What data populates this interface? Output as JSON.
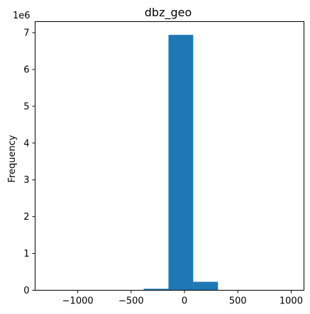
{
  "chart_data": {
    "type": "bar",
    "title": "dbz_geo",
    "xlabel": "",
    "ylabel": "Frequency",
    "y_scale_label": "1e6",
    "xlim": [
      -1400,
      1120
    ],
    "ylim": [
      0,
      7300000
    ],
    "x_ticks": [
      -1000,
      -500,
      0,
      500,
      1000
    ],
    "x_tick_labels": [
      "−1000",
      "−500",
      "0",
      "500",
      "1000"
    ],
    "y_ticks": [
      0,
      1000000,
      2000000,
      3000000,
      4000000,
      5000000,
      6000000,
      7000000
    ],
    "y_tick_labels": [
      "0",
      "1",
      "2",
      "3",
      "4",
      "5",
      "6",
      "7"
    ],
    "bins": [
      {
        "start": -1310,
        "end": -1078,
        "value": 0
      },
      {
        "start": -1078,
        "end": -846,
        "value": 0
      },
      {
        "start": -846,
        "end": -614,
        "value": 0
      },
      {
        "start": -614,
        "end": -382,
        "value": 2000
      },
      {
        "start": -382,
        "end": -150,
        "value": 40000
      },
      {
        "start": -150,
        "end": 82,
        "value": 6940000
      },
      {
        "start": 82,
        "end": 314,
        "value": 230000
      },
      {
        "start": 314,
        "end": 546,
        "value": 0
      },
      {
        "start": 546,
        "end": 778,
        "value": 0
      },
      {
        "start": 778,
        "end": 1010,
        "value": 0
      }
    ],
    "bar_color": "#1f77b4",
    "grid": false,
    "legend": "none"
  }
}
